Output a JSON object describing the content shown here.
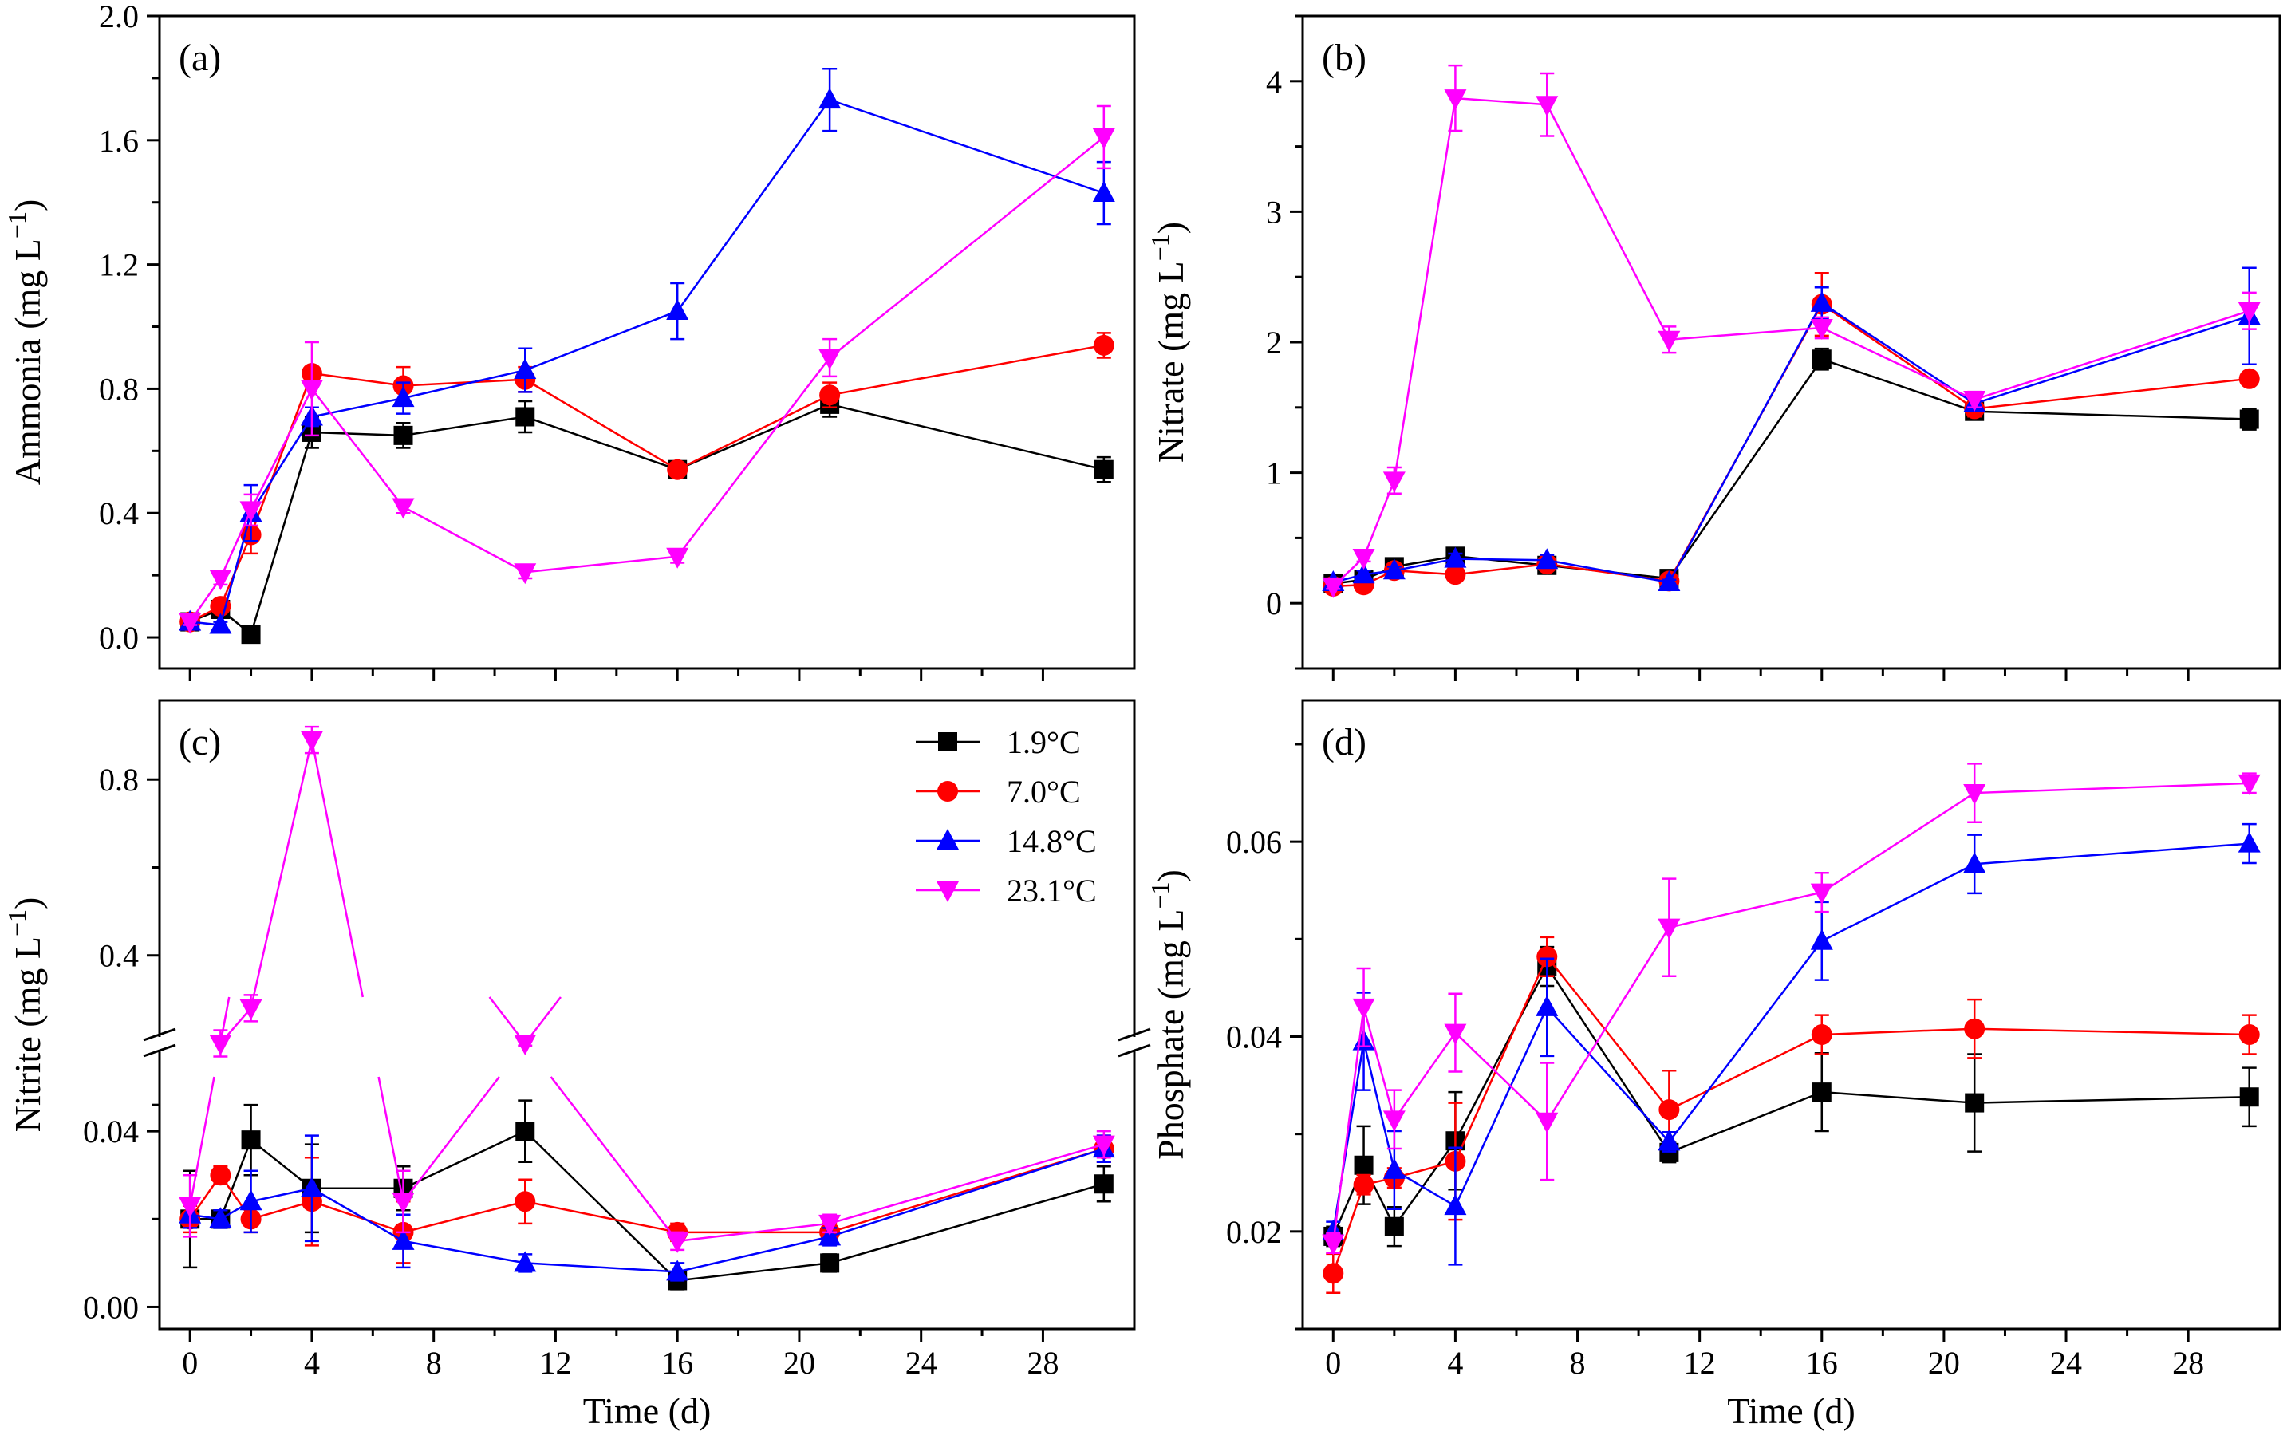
{
  "chart_data": [
    {
      "type": "line",
      "panel_label": "(a)",
      "title": "",
      "xlabel": "",
      "ylabel": "Ammonia (mg L",
      "ylabel_sup": "−1",
      "ylabel_close": ")",
      "x": [
        0,
        1,
        2,
        4,
        7,
        11,
        16,
        21,
        30
      ],
      "xlim": [
        -1,
        31
      ],
      "ylim": [
        -0.1,
        2.0
      ],
      "xticks": [
        0,
        4,
        8,
        12,
        16,
        20,
        24,
        28
      ],
      "xtick_labels": [],
      "yticks": [
        0.0,
        0.4,
        0.8,
        1.2,
        1.6,
        2.0
      ],
      "ytick_labels": [
        "0.0",
        "0.4",
        "0.8",
        "1.2",
        "1.6",
        "2.0"
      ],
      "series": [
        {
          "name": "1.9°C",
          "values": [
            0.05,
            0.09,
            0.01,
            0.66,
            0.65,
            0.71,
            0.54,
            0.75,
            0.54
          ],
          "errors": [
            0.01,
            0.01,
            0.01,
            0.05,
            0.04,
            0.05,
            0.02,
            0.04,
            0.04
          ]
        },
        {
          "name": "7.0°C",
          "values": [
            0.05,
            0.1,
            0.33,
            0.85,
            0.81,
            0.83,
            0.54,
            0.78,
            0.94
          ],
          "errors": [
            0.01,
            0.02,
            0.06,
            0.02,
            0.06,
            0.04,
            0.02,
            0.04,
            0.04
          ]
        },
        {
          "name": "14.8°C",
          "values": [
            0.05,
            0.04,
            0.4,
            0.71,
            0.77,
            0.86,
            1.05,
            1.73,
            1.43
          ],
          "errors": [
            0.01,
            0.01,
            0.09,
            0.03,
            0.05,
            0.07,
            0.09,
            0.1,
            0.1
          ]
        },
        {
          "name": "23.1°C",
          "values": [
            0.05,
            0.19,
            0.41,
            0.8,
            0.42,
            0.21,
            0.26,
            0.9,
            1.61
          ],
          "errors": [
            0.01,
            0.02,
            0.05,
            0.15,
            0.02,
            0.02,
            0.02,
            0.06,
            0.1
          ]
        }
      ]
    },
    {
      "type": "line",
      "panel_label": "(b)",
      "title": "",
      "xlabel": "",
      "ylabel": "Nitrate (mg L",
      "ylabel_sup": "−1",
      "ylabel_close": ")",
      "x": [
        0,
        1,
        2,
        4,
        7,
        11,
        16,
        21,
        30
      ],
      "xlim": [
        -1,
        31
      ],
      "ylim": [
        -0.5,
        4.5
      ],
      "xticks": [
        0,
        4,
        8,
        12,
        16,
        20,
        24,
        28
      ],
      "xtick_labels": [],
      "yticks": [
        0,
        1,
        2,
        3,
        4
      ],
      "ytick_labels": [
        "0",
        "1",
        "2",
        "3",
        "4"
      ],
      "series": [
        {
          "name": "1.9°C",
          "values": [
            0.15,
            0.18,
            0.28,
            0.36,
            0.29,
            0.19,
            1.87,
            1.47,
            1.41
          ],
          "errors": [
            0.02,
            0.02,
            0.03,
            0.04,
            0.03,
            0.02,
            0.08,
            0.06,
            0.08
          ]
        },
        {
          "name": "7.0°C",
          "values": [
            0.13,
            0.14,
            0.25,
            0.22,
            0.3,
            0.17,
            2.29,
            1.49,
            1.72
          ],
          "errors": [
            0.02,
            0.02,
            0.03,
            0.03,
            0.03,
            0.02,
            0.24,
            0.06,
            0.04
          ]
        },
        {
          "name": "14.8°C",
          "values": [
            0.16,
            0.22,
            0.25,
            0.34,
            0.33,
            0.16,
            2.3,
            1.53,
            2.2
          ],
          "errors": [
            0.02,
            0.03,
            0.03,
            0.04,
            0.04,
            0.02,
            0.12,
            0.06,
            0.37
          ]
        },
        {
          "name": "23.1°C",
          "values": [
            0.13,
            0.35,
            0.94,
            3.87,
            3.82,
            2.02,
            2.11,
            1.56,
            2.24
          ],
          "errors": [
            0.02,
            0.03,
            0.1,
            0.25,
            0.24,
            0.1,
            0.08,
            0.06,
            0.14
          ]
        }
      ]
    },
    {
      "type": "line",
      "panel_label": "(c)",
      "title": "",
      "xlabel": "Time (d)",
      "ylabel": "Nitrite (mg L",
      "ylabel_sup": "−1",
      "ylabel_close": ")",
      "x": [
        0,
        1,
        2,
        4,
        7,
        11,
        16,
        21,
        30
      ],
      "xlim": [
        -1,
        31
      ],
      "y_break": true,
      "ylim_lower": [
        -0.005,
        0.06
      ],
      "ylim_upper": [
        0.2,
        0.98
      ],
      "xticks": [
        0,
        4,
        8,
        12,
        16,
        20,
        24,
        28
      ],
      "xtick_labels": [
        "0",
        "4",
        "8",
        "12",
        "16",
        "20",
        "24",
        "28"
      ],
      "yticks_lower": [
        0.0,
        0.04
      ],
      "ytick_labels_lower": [
        "0.00",
        "0.04"
      ],
      "yticks_upper": [
        0.4,
        0.8
      ],
      "ytick_labels_upper": [
        "0.4",
        "0.8"
      ],
      "series": [
        {
          "name": "1.9°C",
          "values": [
            0.02,
            0.02,
            0.038,
            0.027,
            0.027,
            0.04,
            0.006,
            0.01,
            0.028
          ],
          "errors": [
            0.011,
            0.002,
            0.008,
            0.01,
            0.005,
            0.007,
            0.002,
            0.002,
            0.004
          ]
        },
        {
          "name": "7.0°C",
          "values": [
            0.02,
            0.03,
            0.02,
            0.024,
            0.017,
            0.024,
            0.017,
            0.017,
            0.036
          ],
          "errors": [
            0.003,
            0.002,
            0.003,
            0.01,
            0.007,
            0.005,
            0.002,
            0.002,
            0.003
          ]
        },
        {
          "name": "14.8°C",
          "values": [
            0.021,
            0.02,
            0.024,
            0.027,
            0.015,
            0.01,
            0.008,
            0.016,
            0.036
          ],
          "errors": [
            0.003,
            0.002,
            0.007,
            0.012,
            0.006,
            0.002,
            0.002,
            0.002,
            0.003
          ]
        },
        {
          "name": "23.1°C",
          "values": [
            0.023,
            0.2,
            0.28,
            0.89,
            0.024,
            0.2,
            0.015,
            0.019,
            0.037
          ],
          "errors": [
            0.007,
            0.03,
            0.03,
            0.03,
            0.007,
            0.005,
            0.002,
            0.002,
            0.003
          ]
        }
      ]
    },
    {
      "type": "line",
      "panel_label": "(d)",
      "title": "",
      "xlabel": "Time (d)",
      "ylabel": "Phosphate (mg L",
      "ylabel_sup": "−1",
      "ylabel_close": ")",
      "x": [
        0,
        1,
        2,
        4,
        7,
        11,
        16,
        21,
        30
      ],
      "xlim": [
        -1,
        31
      ],
      "ylim": [
        0.01,
        0.0745
      ],
      "xticks": [
        0,
        4,
        8,
        12,
        16,
        20,
        24,
        28
      ],
      "xtick_labels": [
        "0",
        "4",
        "8",
        "12",
        "16",
        "20",
        "24",
        "28"
      ],
      "yticks": [
        0.02,
        0.04,
        0.06
      ],
      "ytick_labels": [
        "0.02",
        "0.04",
        "0.06"
      ],
      "series": [
        {
          "name": "1.9°C",
          "values": [
            0.0195,
            0.0268,
            0.0205,
            0.0293,
            0.0472,
            0.0281,
            0.0343,
            0.0332,
            0.0338
          ],
          "errors": [
            0.001,
            0.004,
            0.002,
            0.005,
            0.002,
            0.001,
            0.004,
            0.005,
            0.003
          ]
        },
        {
          "name": "7.0°C",
          "values": [
            0.0157,
            0.0248,
            0.0255,
            0.0272,
            0.0482,
            0.0325,
            0.0402,
            0.0408,
            0.0402
          ],
          "errors": [
            0.002,
            0.001,
            0.001,
            0.006,
            0.002,
            0.004,
            0.002,
            0.003,
            0.002
          ]
        },
        {
          "name": "14.8°C",
          "values": [
            0.02,
            0.0395,
            0.0263,
            0.0226,
            0.043,
            0.0292,
            0.0498,
            0.0577,
            0.0598
          ],
          "errors": [
            0.001,
            0.005,
            0.004,
            0.006,
            0.005,
            0.001,
            0.004,
            0.003,
            0.002
          ]
        },
        {
          "name": "23.1°C",
          "values": [
            0.0188,
            0.043,
            0.0315,
            0.0404,
            0.0313,
            0.0512,
            0.0548,
            0.065,
            0.066
          ],
          "errors": [
            0.001,
            0.004,
            0.003,
            0.004,
            0.006,
            0.005,
            0.002,
            0.003,
            0.001
          ]
        }
      ]
    }
  ],
  "legend": {
    "placement": "upper-right of panel (c)",
    "entries": [
      "1.9°C",
      "7.0°C",
      "14.8°C",
      "23.1°C"
    ]
  },
  "colors": {
    "1.9°C": "#000000",
    "7.0°C": "#ff0000",
    "14.8°C": "#0000ff",
    "23.1°C": "#ff00ff"
  },
  "markers": {
    "1.9°C": "square",
    "7.0°C": "circle",
    "14.8°C": "triangle-up",
    "23.1°C": "triangle-down"
  }
}
